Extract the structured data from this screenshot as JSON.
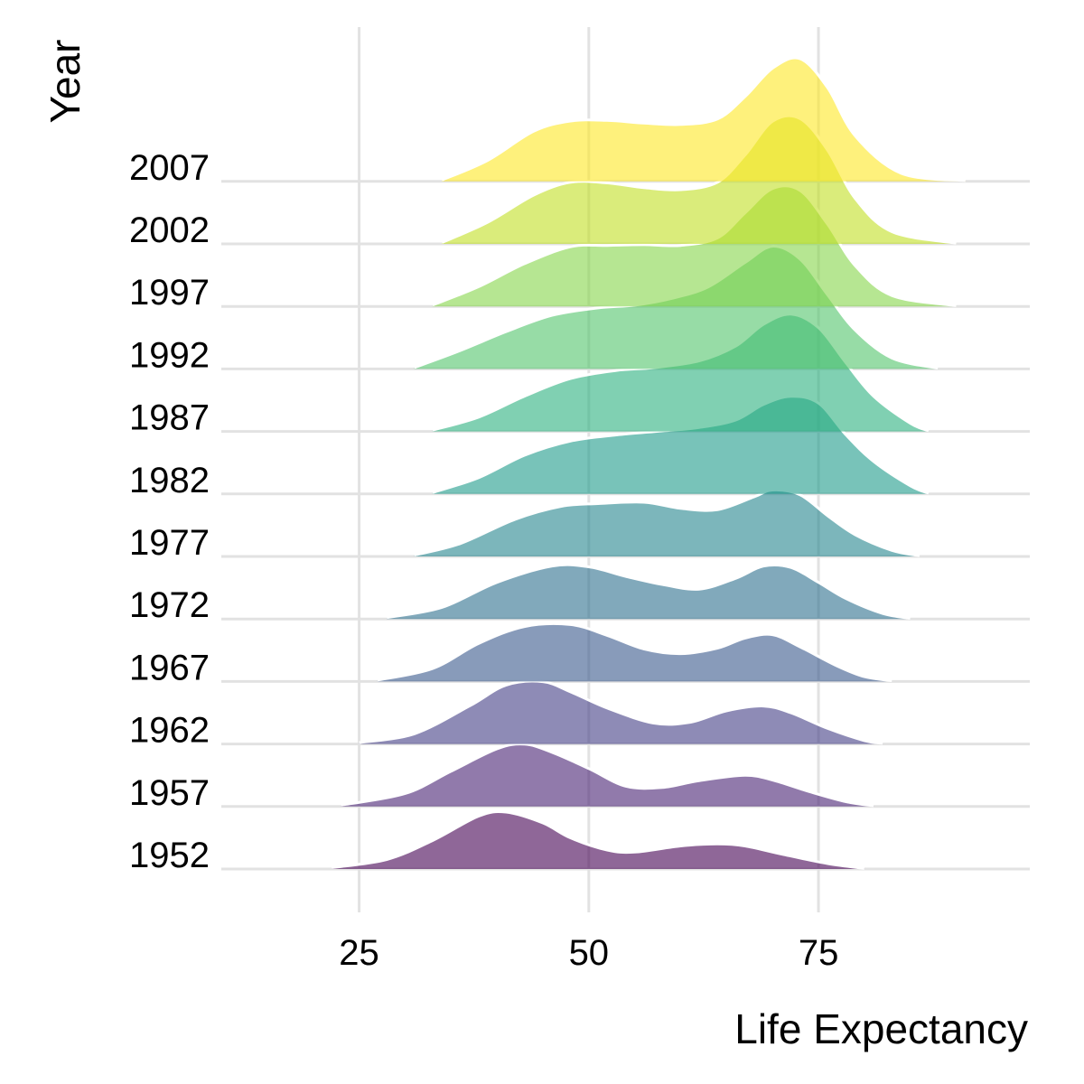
{
  "chart_data": {
    "type": "ridgeline",
    "title": "",
    "xlabel": "Life Expectancy",
    "ylabel": "Year",
    "xlim": [
      10,
      98
    ],
    "xticks": [
      25,
      50,
      75
    ],
    "grid": true,
    "legend": "none",
    "fill_opacity": 0.6,
    "outline_color": "#ffffff",
    "series": [
      {
        "name": "1952",
        "color": "#440154",
        "x": [
          22,
          28,
          33,
          38,
          41,
          45,
          48,
          52,
          55,
          60,
          64,
          67,
          71,
          76,
          80
        ],
        "density": [
          0.02,
          0.14,
          0.42,
          0.78,
          0.84,
          0.68,
          0.46,
          0.28,
          0.25,
          0.34,
          0.37,
          0.34,
          0.22,
          0.08,
          0.01
        ]
      },
      {
        "name": "1957",
        "color": "#482173",
        "x": [
          23,
          30,
          35,
          40,
          43,
          46,
          50,
          54,
          58,
          62,
          67,
          70,
          74,
          78,
          81
        ],
        "density": [
          0.02,
          0.19,
          0.52,
          0.85,
          0.92,
          0.8,
          0.56,
          0.3,
          0.28,
          0.38,
          0.46,
          0.39,
          0.22,
          0.07,
          0.01
        ]
      },
      {
        "name": "1962",
        "color": "#433E85",
        "x": [
          25,
          31,
          37,
          41,
          45,
          48,
          52,
          57,
          61,
          65,
          69,
          72,
          76,
          80,
          82
        ],
        "density": [
          0.02,
          0.15,
          0.56,
          0.87,
          0.92,
          0.77,
          0.53,
          0.31,
          0.32,
          0.49,
          0.56,
          0.46,
          0.23,
          0.05,
          0.01
        ]
      },
      {
        "name": "1967",
        "color": "#38598C",
        "x": [
          27,
          33,
          38,
          43,
          48,
          52,
          56,
          60,
          64,
          67,
          70,
          73,
          77,
          80,
          83
        ],
        "density": [
          0.02,
          0.19,
          0.56,
          0.81,
          0.84,
          0.68,
          0.48,
          0.41,
          0.49,
          0.64,
          0.69,
          0.51,
          0.23,
          0.07,
          0.01
        ]
      },
      {
        "name": "1972",
        "color": "#2D708E",
        "x": [
          28,
          34,
          40,
          46,
          50,
          54,
          58,
          62,
          66,
          69,
          72,
          75,
          78,
          82,
          85
        ],
        "density": [
          0.02,
          0.17,
          0.54,
          0.78,
          0.77,
          0.63,
          0.51,
          0.44,
          0.6,
          0.78,
          0.76,
          0.54,
          0.3,
          0.08,
          0.01
        ]
      },
      {
        "name": "1977",
        "color": "#25858E",
        "x": [
          31,
          36,
          42,
          47,
          51,
          56,
          60,
          64,
          68,
          70,
          73,
          76,
          79,
          83,
          86
        ],
        "density": [
          0.02,
          0.19,
          0.55,
          0.74,
          0.78,
          0.8,
          0.71,
          0.69,
          0.88,
          0.98,
          0.91,
          0.6,
          0.32,
          0.09,
          0.01
        ]
      },
      {
        "name": "1982",
        "color": "#1E9B8A",
        "x": [
          33,
          38,
          43,
          48,
          53,
          58,
          62,
          66,
          69,
          72,
          75,
          78,
          81,
          85,
          87
        ],
        "density": [
          0.02,
          0.24,
          0.57,
          0.78,
          0.87,
          0.93,
          0.98,
          1.09,
          1.32,
          1.44,
          1.34,
          0.87,
          0.48,
          0.12,
          0.01
        ]
      },
      {
        "name": "1987",
        "color": "#2BB07F",
        "x": [
          33,
          38,
          43,
          48,
          53,
          57,
          62,
          66,
          69,
          72,
          75,
          78,
          81,
          85,
          87
        ],
        "density": [
          0.02,
          0.21,
          0.52,
          0.78,
          0.9,
          0.94,
          1.04,
          1.26,
          1.58,
          1.73,
          1.53,
          1.01,
          0.52,
          0.12,
          0.01
        ]
      },
      {
        "name": "1992",
        "color": "#51C56A",
        "x": [
          31,
          36,
          41,
          46,
          51,
          55,
          59,
          63,
          67,
          70,
          73,
          76,
          79,
          83,
          88
        ],
        "density": [
          0.02,
          0.27,
          0.55,
          0.79,
          0.9,
          0.94,
          1.04,
          1.21,
          1.57,
          1.81,
          1.62,
          1.09,
          0.57,
          0.16,
          0.01
        ]
      },
      {
        "name": "1997",
        "color": "#85D54A",
        "x": [
          33,
          38,
          43,
          48,
          52,
          56,
          60,
          64,
          67,
          70,
          73,
          76,
          79,
          83,
          90
        ],
        "density": [
          0.02,
          0.29,
          0.63,
          0.88,
          0.9,
          0.91,
          0.9,
          1.01,
          1.38,
          1.74,
          1.71,
          1.21,
          0.6,
          0.16,
          0.01
        ]
      },
      {
        "name": "2002",
        "color": "#C2DF23",
        "x": [
          34,
          39,
          44,
          48,
          52,
          56,
          60,
          64,
          67,
          70,
          73,
          76,
          79,
          83,
          90
        ],
        "density": [
          0.02,
          0.32,
          0.72,
          0.91,
          0.9,
          0.83,
          0.8,
          0.91,
          1.31,
          1.81,
          1.85,
          1.38,
          0.67,
          0.18,
          0.01
        ]
      },
      {
        "name": "2007",
        "color": "#FDE725",
        "x": [
          34,
          39,
          44,
          48,
          52,
          56,
          60,
          64,
          67,
          70,
          73,
          76,
          79,
          84,
          91
        ],
        "density": [
          0.02,
          0.31,
          0.74,
          0.89,
          0.9,
          0.86,
          0.84,
          0.92,
          1.25,
          1.67,
          1.81,
          1.38,
          0.67,
          0.12,
          0.01
        ]
      }
    ]
  }
}
